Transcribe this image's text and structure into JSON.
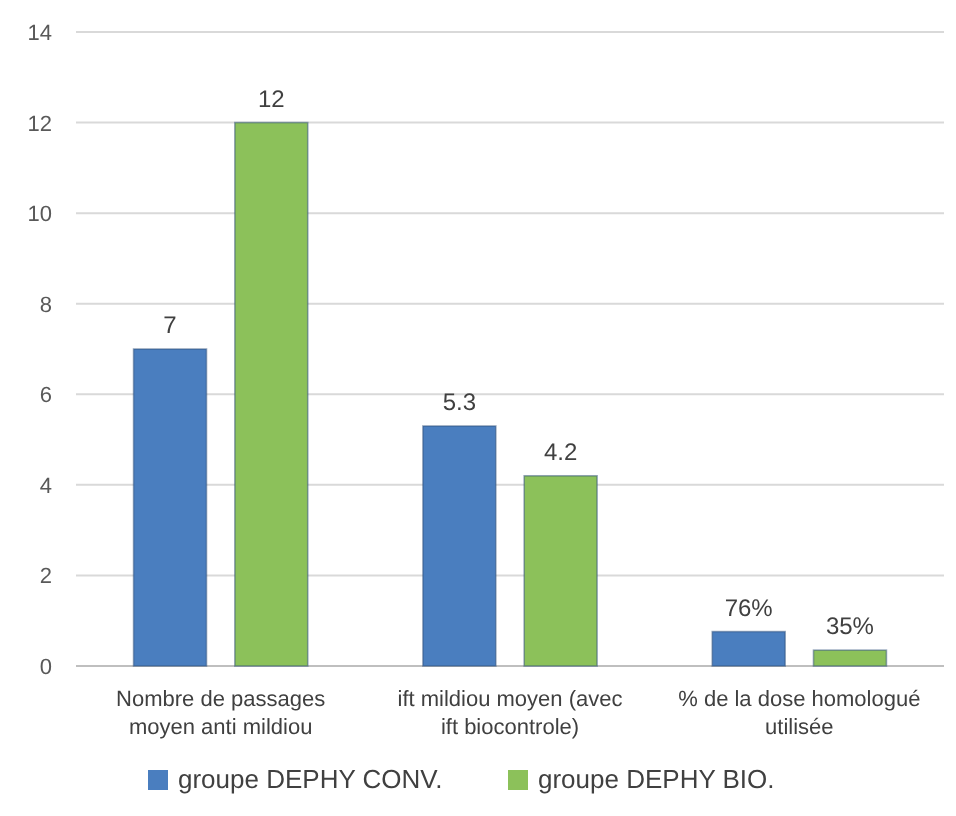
{
  "chart_data": {
    "type": "bar",
    "categories": [
      "Nombre de passages moyen anti mildiou",
      "ift mildiou moyen (avec ift biocontrole)",
      "% de la dose homologué utilisée"
    ],
    "series": [
      {
        "name": "groupe DEPHY CONV.",
        "color": "#4a7ebf",
        "values": [
          7,
          5.3,
          0.76
        ],
        "value_labels": [
          "7",
          "5.3",
          "76%"
        ]
      },
      {
        "name": "groupe DEPHY BIO.",
        "color": "#8cc15a",
        "values": [
          12,
          4.2,
          0.35
        ],
        "value_labels": [
          "12",
          "4.2",
          "35%"
        ]
      }
    ],
    "ylim": [
      0,
      14
    ],
    "yticks": [
      0,
      2,
      4,
      6,
      8,
      10,
      12,
      14
    ],
    "grid": "y",
    "legend": "bottom"
  }
}
